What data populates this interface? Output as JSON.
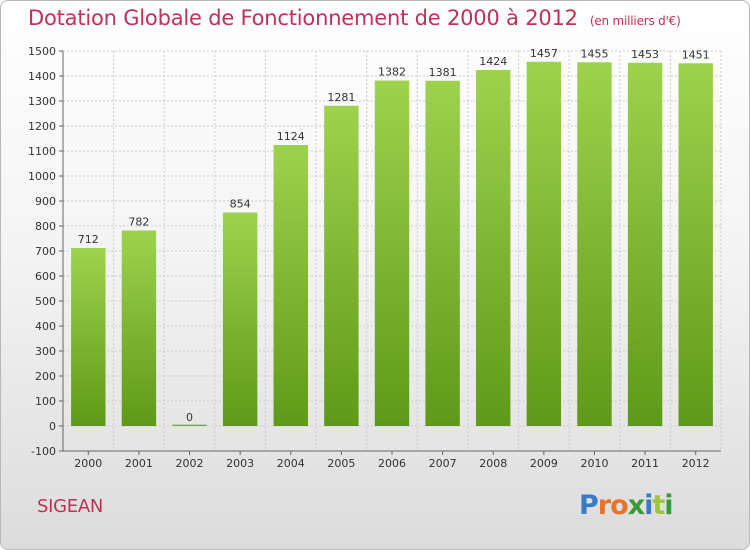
{
  "title": "Dotation Globale de Fonctionnement de 2000 à 2012",
  "unit": "(en milliers d'€)",
  "commune": "SIGEAN",
  "logo": {
    "letters": [
      "P",
      "r",
      "o",
      "x",
      "i",
      "t",
      "i"
    ],
    "colors": [
      "#3a78c8",
      "#e8742a",
      "#e8742a",
      "#3a9a3a",
      "#3a78c8",
      "#9ac83a",
      "#3a9a3a"
    ]
  },
  "colors": {
    "title": "#c0305a",
    "bar_top": "#9ed24e",
    "bar_bottom": "#5e9a18",
    "grid": "#cccccc"
  },
  "chart_data": {
    "type": "bar",
    "categories": [
      "2000",
      "2001",
      "2002",
      "2003",
      "2004",
      "2005",
      "2006",
      "2007",
      "2008",
      "2009",
      "2010",
      "2011",
      "2012"
    ],
    "values": [
      712,
      782,
      0,
      854,
      1124,
      1281,
      1382,
      1381,
      1424,
      1457,
      1455,
      1453,
      1451
    ],
    "data_labels": [
      "712",
      "782",
      "0",
      "854",
      "1124",
      "1281",
      "1382",
      "1381",
      "1424",
      "1457",
      "1455",
      "1453",
      "1451"
    ],
    "ylim": [
      -100,
      1500
    ],
    "yticks": [
      "-100",
      "0",
      "100",
      "200",
      "300",
      "400",
      "500",
      "600",
      "700",
      "800",
      "900",
      "1000",
      "1100",
      "1200",
      "1300",
      "1400",
      "1500"
    ],
    "grid": true
  }
}
